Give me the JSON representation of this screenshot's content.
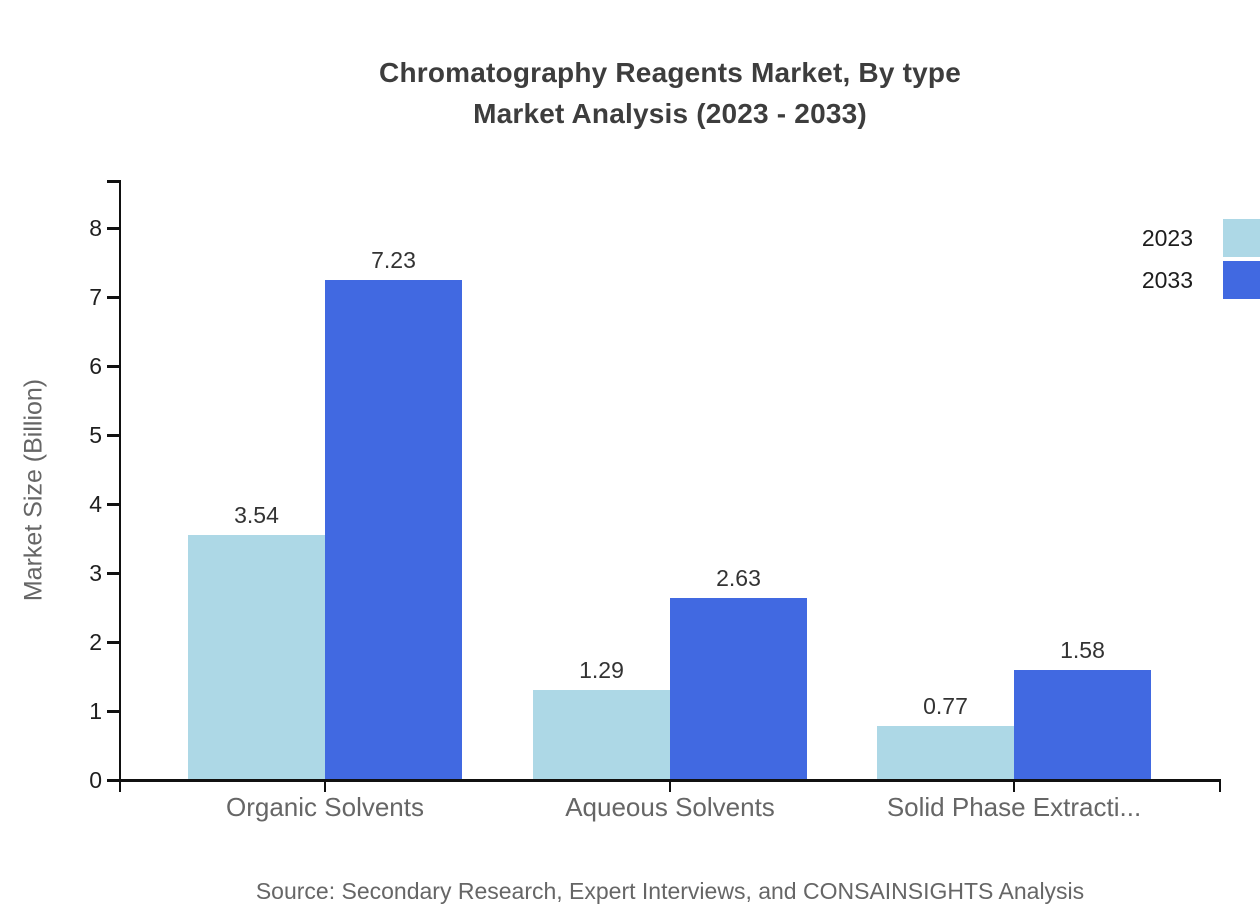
{
  "title": {
    "line1": "Chromatography Reagents Market, By type",
    "line2": "Market Analysis (2023 - 2033)"
  },
  "source_note": "Source: Secondary Research, Expert Interviews, and CONSAINSIGHTS Analysis",
  "chart_data": {
    "type": "bar",
    "title": "Chromatography Reagents Market, By type Market Analysis (2023 - 2033)",
    "categories": [
      "Organic Solvents",
      "Aqueous Solvents",
      "Solid Phase Extracti..."
    ],
    "series": [
      {
        "name": "2023",
        "color": "#ADD8E6",
        "values": [
          3.54,
          1.29,
          0.77
        ]
      },
      {
        "name": "2033",
        "color": "#4169E1",
        "values": [
          7.23,
          2.63,
          1.58
        ]
      }
    ],
    "xlabel": "",
    "ylabel": "Market Size (Billion)",
    "ylim": [
      0,
      8.7
    ],
    "yticks": [
      0,
      1,
      2,
      3,
      4,
      5,
      6,
      7,
      8
    ],
    "grid": false,
    "legend_position": "top-right",
    "bar_value_labels": true,
    "value_label_format": "2-decimals"
  },
  "colors": {
    "axis": "#111111",
    "title_text": "#3d3d3d",
    "tick_label_text": "#1f1f1f",
    "value_label_text": "#333333",
    "muted_text": "#666666",
    "background": "#ffffff"
  }
}
